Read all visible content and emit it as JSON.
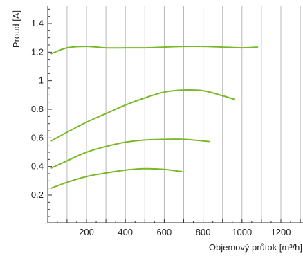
{
  "chart_data": {
    "type": "line",
    "xlabel": "Objemový průtok [m³/h]",
    "ylabel": "Proud [A]",
    "xlim": [
      0,
      1280
    ],
    "ylim": [
      0,
      1.55
    ],
    "x_ticks": [
      200,
      400,
      600,
      800,
      1000,
      1200
    ],
    "y_ticks": [
      0.2,
      0.4,
      0.6,
      0.8,
      1,
      1.2,
      1.4
    ],
    "grid": "vertical",
    "line_color": "#7ab82a",
    "series": [
      {
        "x": [
          20,
          100,
          200,
          300,
          400,
          500,
          600,
          700,
          800,
          900,
          1000,
          1080
        ],
        "values": [
          1.19,
          1.23,
          1.24,
          1.23,
          1.23,
          1.23,
          1.235,
          1.24,
          1.24,
          1.235,
          1.23,
          1.235
        ]
      },
      {
        "x": [
          20,
          100,
          200,
          300,
          400,
          500,
          600,
          700,
          800,
          900,
          960
        ],
        "values": [
          0.58,
          0.64,
          0.71,
          0.77,
          0.83,
          0.88,
          0.92,
          0.935,
          0.93,
          0.895,
          0.87
        ]
      },
      {
        "x": [
          20,
          100,
          200,
          300,
          400,
          500,
          600,
          700,
          830
        ],
        "values": [
          0.39,
          0.44,
          0.5,
          0.54,
          0.57,
          0.585,
          0.59,
          0.59,
          0.575
        ]
      },
      {
        "x": [
          20,
          100,
          200,
          300,
          400,
          500,
          600,
          690
        ],
        "values": [
          0.25,
          0.29,
          0.33,
          0.355,
          0.375,
          0.385,
          0.38,
          0.365
        ]
      }
    ]
  }
}
